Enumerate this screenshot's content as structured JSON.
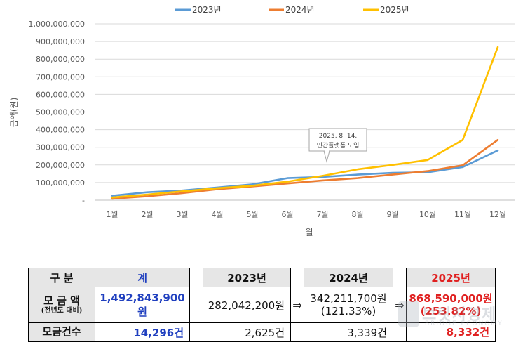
{
  "chart_data": {
    "type": "line",
    "title": "",
    "xlabel": "월",
    "ylabel": "금액(원)",
    "ylim": [
      0,
      1000000000
    ],
    "yticks": [
      "-",
      "100,000,000",
      "200,000,000",
      "300,000,000",
      "400,000,000",
      "500,000,000",
      "600,000,000",
      "700,000,000",
      "800,000,000",
      "900,000,000",
      "1,000,000,000"
    ],
    "categories": [
      "1월",
      "2월",
      "3월",
      "4월",
      "5월",
      "6월",
      "7월",
      "8월",
      "9월",
      "10월",
      "11월",
      "12월"
    ],
    "grid": true,
    "legend_position": "top",
    "series": [
      {
        "name": "2023년",
        "color": "#5b9bd5",
        "values": [
          25000000,
          45000000,
          55000000,
          72000000,
          90000000,
          125000000,
          132000000,
          145000000,
          155000000,
          158000000,
          188000000,
          282000000
        ]
      },
      {
        "name": "2024년",
        "color": "#ed7d31",
        "values": [
          8000000,
          22000000,
          40000000,
          62000000,
          78000000,
          95000000,
          112000000,
          125000000,
          145000000,
          165000000,
          198000000,
          342000000
        ]
      },
      {
        "name": "2025년",
        "color": "#ffc000",
        "values": [
          15000000,
          32000000,
          50000000,
          68000000,
          82000000,
          105000000,
          138000000,
          175000000,
          200000000,
          228000000,
          342000000,
          868000000
        ]
      }
    ],
    "annotation": {
      "line1": "2025. 8. 14.",
      "line2": "민간플랫폼 도입",
      "x_index": 7
    }
  },
  "table": {
    "header": {
      "label": "구  분",
      "total": "계",
      "y2023": "2023년",
      "y2024": "2024년",
      "y2025": "2025년"
    },
    "row_amount": {
      "label": "모 금 액",
      "sublabel": "(전년도 대비)",
      "total": "1,492,843,900원",
      "y2023": "282,042,200원",
      "arrow1": "⇒",
      "y2024_line1": "342,211,700원",
      "y2024_line2": "(121.33%)",
      "arrow2": "⇒",
      "y2025_line1": "868,590,000원",
      "y2025_line2": "(253.82%)"
    },
    "row_count": {
      "label": "모금건수",
      "total": "14,296건",
      "y2023": "2,625건",
      "y2024": "3,339건",
      "y2025": "8,332건"
    }
  },
  "watermark": {
    "text": "브릿지경제",
    "sub": "BRIDGE ECONOMY"
  }
}
